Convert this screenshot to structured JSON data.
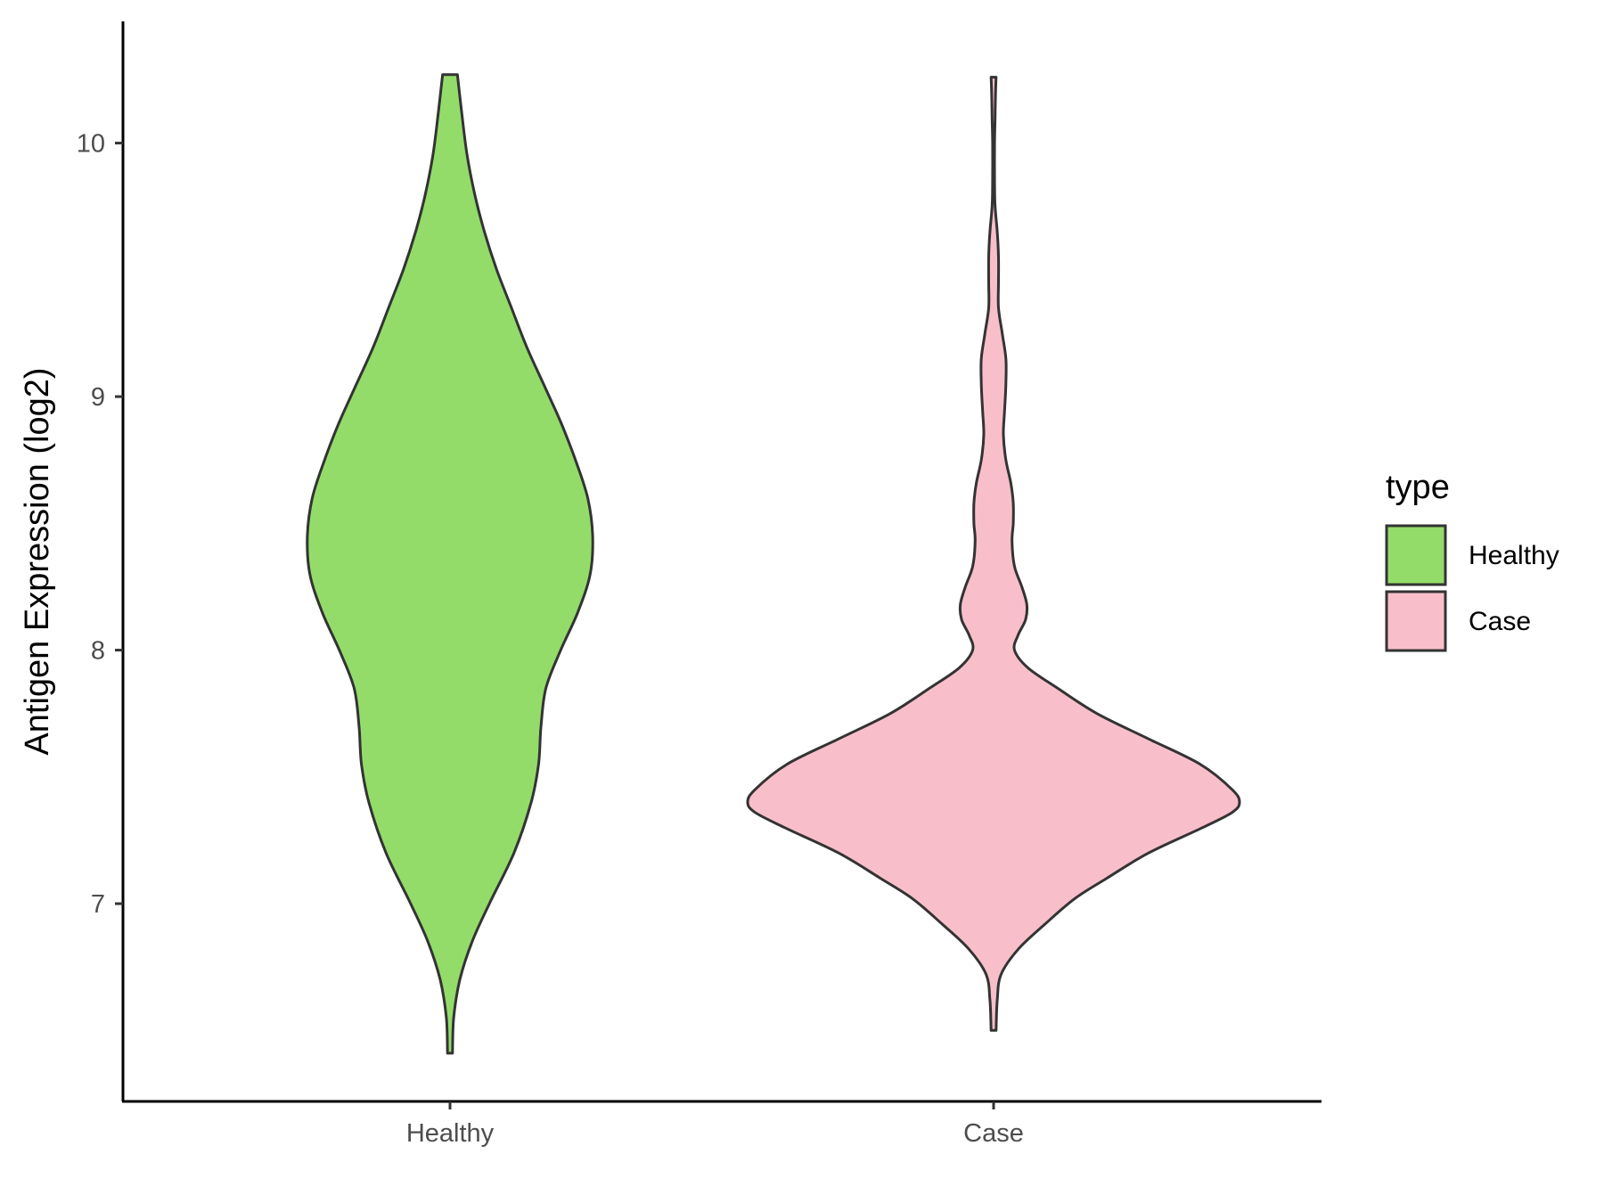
{
  "chart_data": {
    "type": "violin",
    "title": "",
    "xlabel": "",
    "ylabel": "Antigen Expression (log2)",
    "categories": [
      "Healthy",
      "Case"
    ],
    "yticks": [
      7,
      8,
      9,
      10
    ],
    "ylim": [
      6.22,
      10.48
    ],
    "grid": false,
    "legend": {
      "title": "type",
      "position": "right",
      "entries": [
        {
          "label": "Healthy",
          "color": "#93dc6a"
        },
        {
          "label": "Case",
          "color": "#f8bfca"
        }
      ]
    },
    "series": [
      {
        "category": "Healthy",
        "color": "#93dc6a",
        "ymin": 6.41,
        "ymax": 10.27,
        "density": [
          [
            6.41,
            0.01
          ],
          [
            6.55,
            0.015
          ],
          [
            6.7,
            0.04
          ],
          [
            6.85,
            0.09
          ],
          [
            7.0,
            0.16
          ],
          [
            7.2,
            0.26
          ],
          [
            7.4,
            0.33
          ],
          [
            7.55,
            0.36
          ],
          [
            7.7,
            0.37
          ],
          [
            7.85,
            0.39
          ],
          [
            8.0,
            0.45
          ],
          [
            8.15,
            0.52
          ],
          [
            8.3,
            0.57
          ],
          [
            8.45,
            0.58
          ],
          [
            8.6,
            0.56
          ],
          [
            8.75,
            0.51
          ],
          [
            8.9,
            0.45
          ],
          [
            9.05,
            0.38
          ],
          [
            9.2,
            0.31
          ],
          [
            9.35,
            0.25
          ],
          [
            9.5,
            0.19
          ],
          [
            9.65,
            0.14
          ],
          [
            9.8,
            0.1
          ],
          [
            9.95,
            0.07
          ],
          [
            10.1,
            0.05
          ],
          [
            10.27,
            0.03
          ]
        ]
      },
      {
        "category": "Case",
        "color": "#f8bfca",
        "ymin": 6.5,
        "ymax": 10.26,
        "density": [
          [
            6.5,
            0.01
          ],
          [
            6.62,
            0.015
          ],
          [
            6.72,
            0.03
          ],
          [
            6.82,
            0.1
          ],
          [
            6.92,
            0.21
          ],
          [
            7.02,
            0.33
          ],
          [
            7.1,
            0.46
          ],
          [
            7.2,
            0.63
          ],
          [
            7.3,
            0.85
          ],
          [
            7.36,
            0.97
          ],
          [
            7.4,
            1.0
          ],
          [
            7.45,
            0.97
          ],
          [
            7.55,
            0.84
          ],
          [
            7.65,
            0.63
          ],
          [
            7.75,
            0.42
          ],
          [
            7.85,
            0.26
          ],
          [
            7.93,
            0.14
          ],
          [
            8.0,
            0.085
          ],
          [
            8.06,
            0.1
          ],
          [
            8.12,
            0.13
          ],
          [
            8.18,
            0.135
          ],
          [
            8.25,
            0.115
          ],
          [
            8.33,
            0.085
          ],
          [
            8.43,
            0.075
          ],
          [
            8.5,
            0.08
          ],
          [
            8.58,
            0.08
          ],
          [
            8.66,
            0.07
          ],
          [
            8.75,
            0.05
          ],
          [
            8.85,
            0.04
          ],
          [
            8.95,
            0.045
          ],
          [
            9.05,
            0.05
          ],
          [
            9.15,
            0.05
          ],
          [
            9.25,
            0.035
          ],
          [
            9.35,
            0.02
          ],
          [
            9.45,
            0.02
          ],
          [
            9.55,
            0.02
          ],
          [
            9.65,
            0.015
          ],
          [
            9.75,
            0.006
          ],
          [
            9.85,
            0.004
          ],
          [
            10.0,
            0.004
          ],
          [
            10.1,
            0.006
          ],
          [
            10.2,
            0.008
          ],
          [
            10.26,
            0.01
          ]
        ]
      }
    ]
  }
}
